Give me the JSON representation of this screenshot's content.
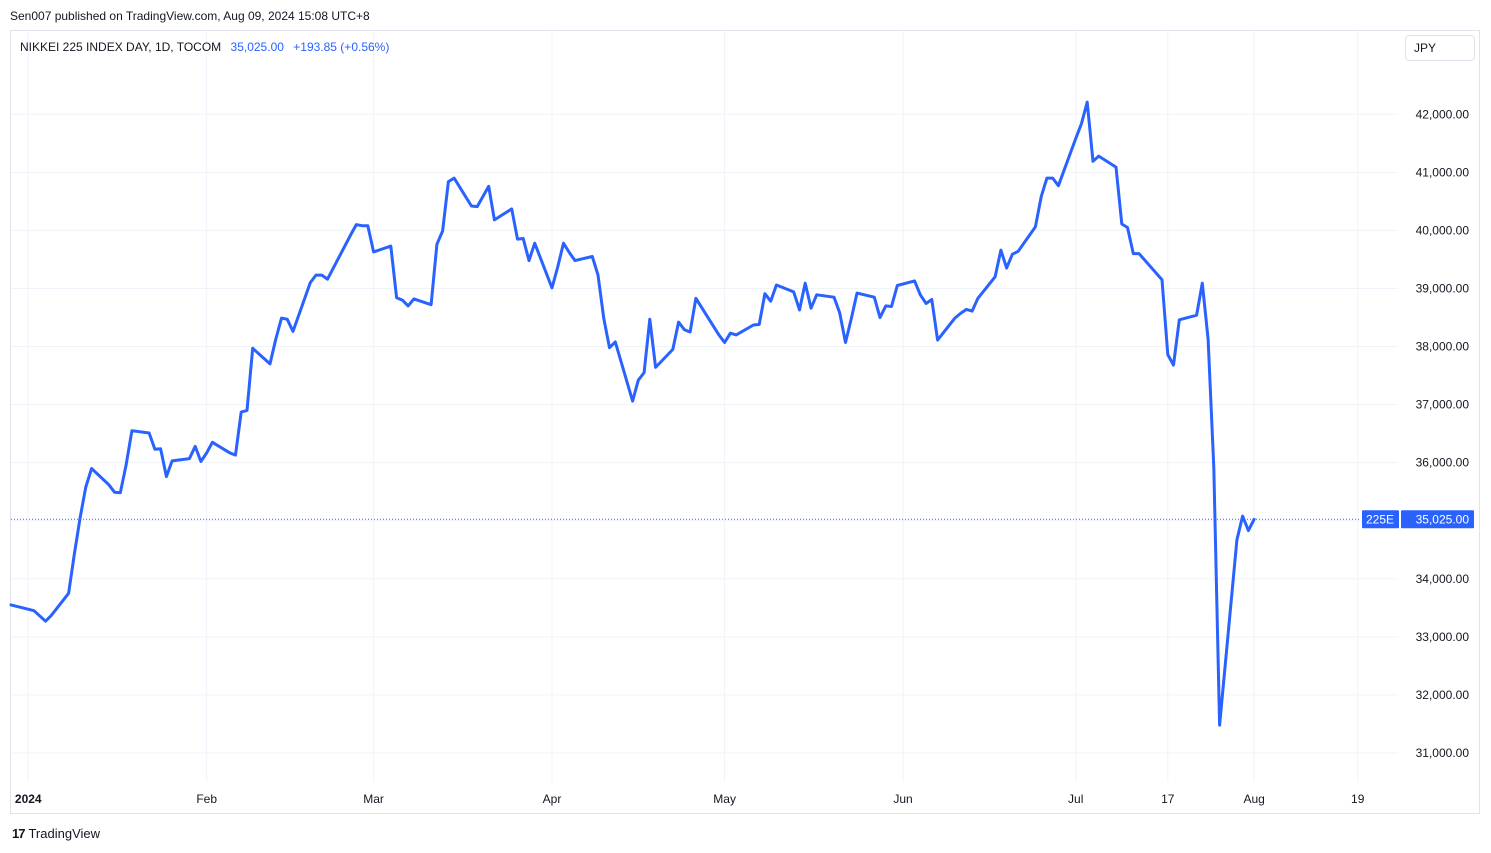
{
  "header": {
    "published_by": "Sen007 published on TradingView.com, Aug 09, 2024 15:08 UTC+8"
  },
  "legend": {
    "symbol": "NIKKEI 225 INDEX DAY, 1D, TOCOM",
    "last_value": "35,025.00",
    "change": "+193.85 (+0.56%)"
  },
  "currency_button": "JPY",
  "price_tag": {
    "ticker": "225E",
    "value": "35,025.00"
  },
  "footer": {
    "brand": "TradingView",
    "logo_mark": "17"
  },
  "colors": {
    "line": "#2962ff",
    "grid": "#f0f3fa",
    "axis_text": "#131722",
    "tag_bg": "#2962ff"
  },
  "chart_data": {
    "type": "line",
    "title": "NIKKEI 225 INDEX DAY, 1D, TOCOM",
    "ylim": [
      30500,
      42900
    ],
    "y_ticks": [
      31000,
      32000,
      33000,
      34000,
      35000,
      36000,
      37000,
      38000,
      39000,
      40000,
      41000,
      42000
    ],
    "y_tick_labels": [
      "31,000.00",
      "32,000.00",
      "33,000.00",
      "34,000.00",
      "35,000.00",
      "36,000.00",
      "37,000.00",
      "38,000.00",
      "39,000.00",
      "40,000.00",
      "41,000.00",
      "42,000.00"
    ],
    "x_ticks": [
      {
        "label": "2024",
        "date": "2024-01-01"
      },
      {
        "label": "Feb",
        "date": "2024-02-01"
      },
      {
        "label": "Mar",
        "date": "2024-03-01"
      },
      {
        "label": "Apr",
        "date": "2024-04-01"
      },
      {
        "label": "May",
        "date": "2024-05-01"
      },
      {
        "label": "Jun",
        "date": "2024-06-01"
      },
      {
        "label": "Jul",
        "date": "2024-07-01"
      },
      {
        "label": "17",
        "date": "2024-07-17"
      },
      {
        "label": "Aug",
        "date": "2024-08-01"
      },
      {
        "label": "19",
        "date": "2024-08-19"
      }
    ],
    "xlim": [
      "2023-12-29",
      "2024-08-26"
    ],
    "grid": true,
    "last_price_line": 35025,
    "series": [
      {
        "name": "NIKKEI 225 INDEX DAY, 1D, TOCOM",
        "points": [
          [
            "2023-12-29",
            33550
          ],
          [
            "2024-01-02",
            33450
          ],
          [
            "2024-01-04",
            33270
          ],
          [
            "2024-01-05",
            33370
          ],
          [
            "2024-01-08",
            33750
          ],
          [
            "2024-01-09",
            34420
          ],
          [
            "2024-01-10",
            35050
          ],
          [
            "2024-01-11",
            35580
          ],
          [
            "2024-01-12",
            35900
          ],
          [
            "2024-01-15",
            35620
          ],
          [
            "2024-01-16",
            35490
          ],
          [
            "2024-01-17",
            35480
          ],
          [
            "2024-01-18",
            35960
          ],
          [
            "2024-01-19",
            36550
          ],
          [
            "2024-01-22",
            36510
          ],
          [
            "2024-01-23",
            36230
          ],
          [
            "2024-01-24",
            36240
          ],
          [
            "2024-01-25",
            35760
          ],
          [
            "2024-01-26",
            36030
          ],
          [
            "2024-01-29",
            36070
          ],
          [
            "2024-01-30",
            36280
          ],
          [
            "2024-01-31",
            36020
          ],
          [
            "2024-02-01",
            36170
          ],
          [
            "2024-02-02",
            36350
          ],
          [
            "2024-02-05",
            36170
          ],
          [
            "2024-02-06",
            36130
          ],
          [
            "2024-02-07",
            36870
          ],
          [
            "2024-02-08",
            36900
          ],
          [
            "2024-02-09",
            37970
          ],
          [
            "2024-02-12",
            37700
          ],
          [
            "2024-02-13",
            38120
          ],
          [
            "2024-02-14",
            38490
          ],
          [
            "2024-02-15",
            38470
          ],
          [
            "2024-02-16",
            38260
          ],
          [
            "2024-02-19",
            39100
          ],
          [
            "2024-02-20",
            39230
          ],
          [
            "2024-02-21",
            39230
          ],
          [
            "2024-02-22",
            39160
          ],
          [
            "2024-02-26",
            39920
          ],
          [
            "2024-02-27",
            40100
          ],
          [
            "2024-02-28",
            40080
          ],
          [
            "2024-02-29",
            40080
          ],
          [
            "2024-03-01",
            39630
          ],
          [
            "2024-03-04",
            39730
          ],
          [
            "2024-03-05",
            38840
          ],
          [
            "2024-03-06",
            38800
          ],
          [
            "2024-03-07",
            38700
          ],
          [
            "2024-03-08",
            38820
          ],
          [
            "2024-03-11",
            38720
          ],
          [
            "2024-03-12",
            39760
          ],
          [
            "2024-03-13",
            39990
          ],
          [
            "2024-03-14",
            40840
          ],
          [
            "2024-03-15",
            40900
          ],
          [
            "2024-03-18",
            40420
          ],
          [
            "2024-03-19",
            40410
          ],
          [
            "2024-03-21",
            40760
          ],
          [
            "2024-03-22",
            40180
          ],
          [
            "2024-03-25",
            40370
          ],
          [
            "2024-03-26",
            39850
          ],
          [
            "2024-03-27",
            39860
          ],
          [
            "2024-03-28",
            39480
          ],
          [
            "2024-03-29",
            39780
          ],
          [
            "2024-04-01",
            39010
          ],
          [
            "2024-04-02",
            39370
          ],
          [
            "2024-04-03",
            39780
          ],
          [
            "2024-04-04",
            39620
          ],
          [
            "2024-04-05",
            39480
          ],
          [
            "2024-04-08",
            39550
          ],
          [
            "2024-04-09",
            39230
          ],
          [
            "2024-04-10",
            38480
          ],
          [
            "2024-04-11",
            37980
          ],
          [
            "2024-04-12",
            38080
          ],
          [
            "2024-04-15",
            37060
          ],
          [
            "2024-04-16",
            37420
          ],
          [
            "2024-04-17",
            37550
          ],
          [
            "2024-04-18",
            38470
          ],
          [
            "2024-04-19",
            37640
          ],
          [
            "2024-04-22",
            37950
          ],
          [
            "2024-04-23",
            38420
          ],
          [
            "2024-04-24",
            38290
          ],
          [
            "2024-04-25",
            38250
          ],
          [
            "2024-04-26",
            38830
          ],
          [
            "2024-04-30",
            38200
          ],
          [
            "2024-05-01",
            38070
          ],
          [
            "2024-05-02",
            38230
          ],
          [
            "2024-05-03",
            38200
          ],
          [
            "2024-05-06",
            38370
          ],
          [
            "2024-05-07",
            38380
          ],
          [
            "2024-05-08",
            38910
          ],
          [
            "2024-05-09",
            38780
          ],
          [
            "2024-05-10",
            39060
          ],
          [
            "2024-05-13",
            38940
          ],
          [
            "2024-05-14",
            38630
          ],
          [
            "2024-05-15",
            39090
          ],
          [
            "2024-05-16",
            38660
          ],
          [
            "2024-05-17",
            38890
          ],
          [
            "2024-05-20",
            38850
          ],
          [
            "2024-05-21",
            38580
          ],
          [
            "2024-05-22",
            38070
          ],
          [
            "2024-05-23",
            38480
          ],
          [
            "2024-05-24",
            38920
          ],
          [
            "2024-05-27",
            38850
          ],
          [
            "2024-05-28",
            38500
          ],
          [
            "2024-05-29",
            38700
          ],
          [
            "2024-05-30",
            38690
          ],
          [
            "2024-05-31",
            39050
          ],
          [
            "2024-06-03",
            39130
          ],
          [
            "2024-06-04",
            38890
          ],
          [
            "2024-06-05",
            38740
          ],
          [
            "2024-06-06",
            38810
          ],
          [
            "2024-06-07",
            38110
          ],
          [
            "2024-06-10",
            38490
          ],
          [
            "2024-06-11",
            38570
          ],
          [
            "2024-06-12",
            38640
          ],
          [
            "2024-06-13",
            38610
          ],
          [
            "2024-06-14",
            38830
          ],
          [
            "2024-06-17",
            39200
          ],
          [
            "2024-06-18",
            39660
          ],
          [
            "2024-06-19",
            39350
          ],
          [
            "2024-06-20",
            39590
          ],
          [
            "2024-06-21",
            39640
          ],
          [
            "2024-06-24",
            40060
          ],
          [
            "2024-06-25",
            40580
          ],
          [
            "2024-06-26",
            40900
          ],
          [
            "2024-06-27",
            40900
          ],
          [
            "2024-06-28",
            40770
          ],
          [
            "2024-07-01",
            41580
          ],
          [
            "2024-07-02",
            41840
          ],
          [
            "2024-07-03",
            42210
          ],
          [
            "2024-07-04",
            41190
          ],
          [
            "2024-07-05",
            41280
          ],
          [
            "2024-07-08",
            41090
          ],
          [
            "2024-07-09",
            40110
          ],
          [
            "2024-07-10",
            40050
          ],
          [
            "2024-07-11",
            39600
          ],
          [
            "2024-07-12",
            39600
          ],
          [
            "2024-07-16",
            39150
          ],
          [
            "2024-07-17",
            37860
          ],
          [
            "2024-07-18",
            37680
          ],
          [
            "2024-07-19",
            38460
          ],
          [
            "2024-07-22",
            38540
          ],
          [
            "2024-07-23",
            39090
          ],
          [
            "2024-07-24",
            38130
          ],
          [
            "2024-07-25",
            35920
          ],
          [
            "2024-07-26",
            31480
          ],
          [
            "2024-07-29",
            34670
          ],
          [
            "2024-07-30",
            35080
          ],
          [
            "2024-07-31",
            34830
          ],
          [
            "2024-08-01",
            35025
          ]
        ]
      }
    ]
  }
}
